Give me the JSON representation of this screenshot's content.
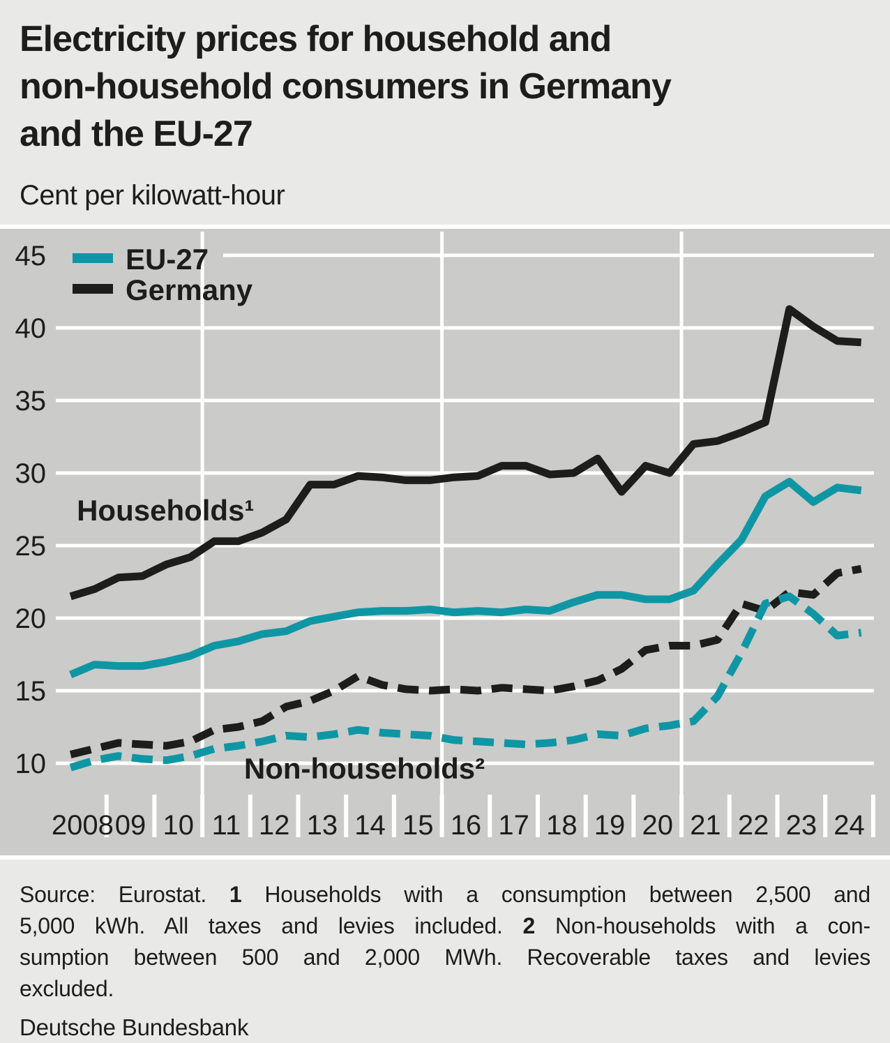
{
  "page": {
    "background": "#e9e9e7",
    "ink": "#1d1d1b",
    "chart_background": "#cbcbc9",
    "grid_color": "#ffffff",
    "accent_teal": "#0f96a4"
  },
  "header": {
    "title_lines": [
      "Electricity prices for household and",
      "non-household consumers in Germany",
      "and the EU-27"
    ],
    "subtitle": "Cent per kilowatt-hour"
  },
  "chart_data": {
    "type": "line",
    "title": "Electricity prices for household and non-household consumers in Germany and the EU-27",
    "ylabel": "Cent per kilowatt-hour",
    "xlabel": "",
    "grid": "on",
    "background": "#cbcbc9",
    "ylim": [
      8.3,
      46.5
    ],
    "yticks": [
      10,
      15,
      20,
      25,
      30,
      35,
      40,
      45
    ],
    "xlim": [
      2008,
      2025
    ],
    "x_year_labels": [
      "2008",
      "09",
      "10",
      "11",
      "12",
      "13",
      "14",
      "15",
      "16",
      "17",
      "18",
      "19",
      "20",
      "21",
      "22",
      "23",
      "24"
    ],
    "vgrid_years": [
      2011,
      2016,
      2021
    ],
    "frequency": "semi-annual",
    "x": [
      2008.25,
      2008.75,
      2009.25,
      2009.75,
      2010.25,
      2010.75,
      2011.25,
      2011.75,
      2012.25,
      2012.75,
      2013.25,
      2013.75,
      2014.25,
      2014.75,
      2015.25,
      2015.75,
      2016.25,
      2016.75,
      2017.25,
      2017.75,
      2018.25,
      2018.75,
      2019.25,
      2019.75,
      2020.25,
      2020.75,
      2021.25,
      2021.75,
      2022.25,
      2022.75,
      2023.25,
      2023.75,
      2024.25,
      2024.75
    ],
    "legend": {
      "position": "top-left",
      "entries": [
        {
          "label": "EU-27",
          "color": "#0f96a4"
        },
        {
          "label": "Germany",
          "color": "#1d1d1b"
        }
      ]
    },
    "series": [
      {
        "id": "germany-non-households",
        "name": "Germany — non-households",
        "legend": "Germany",
        "group": "Non-households",
        "color": "#1d1d1b",
        "line_style": "dashed",
        "values": [
          10.6,
          11.0,
          11.4,
          11.3,
          11.2,
          11.5,
          12.3,
          12.5,
          12.9,
          13.9,
          14.3,
          15.0,
          16.0,
          15.4,
          15.1,
          15.0,
          15.1,
          15.0,
          15.2,
          15.1,
          15.0,
          15.3,
          15.7,
          16.5,
          17.8,
          18.1,
          18.1,
          18.5,
          21.0,
          20.5,
          21.8,
          21.6,
          23.1,
          23.4
        ]
      },
      {
        "id": "eu27-non-households",
        "name": "EU-27 — non-households",
        "legend": "EU-27",
        "group": "Non-households",
        "color": "#0f96a4",
        "line_style": "dashed",
        "values": [
          9.7,
          10.2,
          10.5,
          10.3,
          10.2,
          10.5,
          11.0,
          11.2,
          11.5,
          11.9,
          11.8,
          12.0,
          12.3,
          12.1,
          12.0,
          11.9,
          11.6,
          11.5,
          11.4,
          11.3,
          11.4,
          11.6,
          12.0,
          11.9,
          12.4,
          12.6,
          12.9,
          14.6,
          17.6,
          21.0,
          21.5,
          20.3,
          18.8,
          19.0
        ]
      },
      {
        "id": "germany-households",
        "name": "Germany — households",
        "legend": "Germany",
        "group": "Households",
        "color": "#1d1d1b",
        "line_style": "solid",
        "values": [
          21.5,
          22.0,
          22.8,
          22.9,
          23.7,
          24.2,
          25.3,
          25.3,
          25.9,
          26.8,
          29.2,
          29.2,
          29.8,
          29.7,
          29.5,
          29.5,
          29.7,
          29.8,
          30.5,
          30.5,
          29.9,
          30.0,
          31.0,
          28.7,
          30.5,
          30.0,
          32.0,
          32.2,
          32.8,
          33.5,
          41.3,
          40.1,
          39.1,
          39.0
        ]
      },
      {
        "id": "eu27-households",
        "name": "EU-27 — households",
        "legend": "EU-27",
        "group": "Households",
        "color": "#0f96a4",
        "line_style": "solid",
        "values": [
          16.1,
          16.8,
          16.7,
          16.7,
          17.0,
          17.4,
          18.1,
          18.4,
          18.9,
          19.1,
          19.8,
          20.1,
          20.4,
          20.5,
          20.5,
          20.6,
          20.4,
          20.5,
          20.4,
          20.6,
          20.5,
          21.1,
          21.6,
          21.6,
          21.3,
          21.3,
          21.9,
          23.7,
          25.4,
          28.4,
          29.4,
          28.0,
          29.0,
          28.8
        ]
      }
    ],
    "annotations": [
      {
        "text": "Households¹",
        "x": 2008.38,
        "y": 26.73
      },
      {
        "text": "Non-households²",
        "x": 2011.87,
        "y": 8.94
      }
    ]
  },
  "footer": {
    "source_lines": [
      {
        "justify": true,
        "runs": [
          {
            "text": "Source: Eurostat. "
          },
          {
            "text": "1",
            "bold": true
          },
          {
            "text": " Households with a consumption between 2,500 and"
          }
        ]
      },
      {
        "justify": true,
        "runs": [
          {
            "text": "5,000 kWh. All taxes and levies included. "
          },
          {
            "text": "2",
            "bold": true
          },
          {
            "text": " Non-households with a con-"
          }
        ]
      },
      {
        "justify": true,
        "runs": [
          {
            "text": "sumption between 500 and 2,000 MWh. Recoverable taxes and levies"
          }
        ]
      },
      {
        "justify": false,
        "runs": [
          {
            "text": "excluded."
          }
        ]
      }
    ],
    "brand": "Deutsche Bundesbank"
  }
}
